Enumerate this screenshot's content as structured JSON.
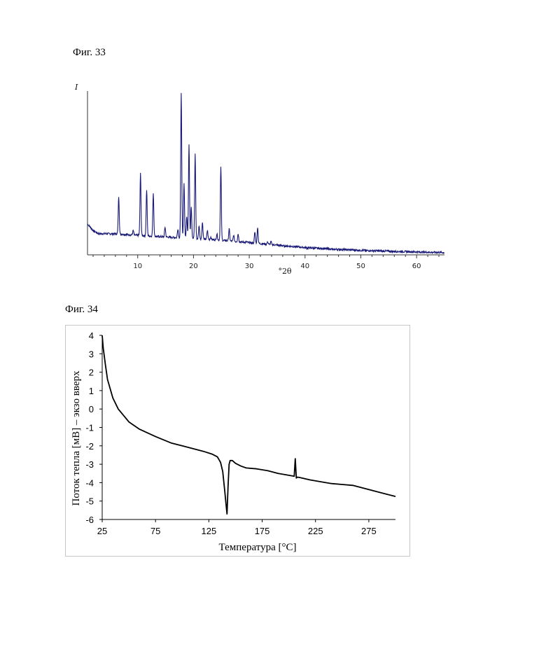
{
  "figures": {
    "fig33_label": "Фиг. 33",
    "fig34_label": "Фиг. 34"
  },
  "chart_data": [
    {
      "type": "line",
      "ylabel": "I",
      "xlabel": "°2θ",
      "xlim": [
        1,
        65
      ],
      "x_ticks": [
        "10",
        "20",
        "30",
        "40",
        "50",
        "60"
      ],
      "x_tick_values": [
        10,
        20,
        30,
        40,
        50,
        60
      ],
      "y_ticks": [],
      "color": "#1a1a78",
      "baseline": [
        [
          1,
          0.19
        ],
        [
          2,
          0.15
        ],
        [
          3,
          0.13
        ],
        [
          6,
          0.13
        ],
        [
          10,
          0.12
        ],
        [
          15,
          0.11
        ],
        [
          20,
          0.1
        ],
        [
          25,
          0.09
        ],
        [
          30,
          0.075
        ],
        [
          35,
          0.06
        ],
        [
          40,
          0.045
        ],
        [
          45,
          0.035
        ],
        [
          50,
          0.028
        ],
        [
          55,
          0.022
        ],
        [
          60,
          0.018
        ],
        [
          65,
          0.014
        ]
      ],
      "peaks": [
        {
          "x": 6.6,
          "y": 0.36
        },
        {
          "x": 9.2,
          "y": 0.15
        },
        {
          "x": 10.5,
          "y": 0.5
        },
        {
          "x": 11.6,
          "y": 0.4
        },
        {
          "x": 12.8,
          "y": 0.38
        },
        {
          "x": 14.9,
          "y": 0.17
        },
        {
          "x": 17.2,
          "y": 0.16
        },
        {
          "x": 17.8,
          "y": 1.0
        },
        {
          "x": 18.3,
          "y": 0.44
        },
        {
          "x": 18.8,
          "y": 0.24
        },
        {
          "x": 19.2,
          "y": 0.68
        },
        {
          "x": 19.6,
          "y": 0.3
        },
        {
          "x": 20.3,
          "y": 0.62
        },
        {
          "x": 21.0,
          "y": 0.18
        },
        {
          "x": 21.6,
          "y": 0.2
        },
        {
          "x": 22.5,
          "y": 0.15
        },
        {
          "x": 23.1,
          "y": 0.11
        },
        {
          "x": 24.2,
          "y": 0.13
        },
        {
          "x": 24.9,
          "y": 0.54
        },
        {
          "x": 26.4,
          "y": 0.16
        },
        {
          "x": 27.2,
          "y": 0.12
        },
        {
          "x": 28.0,
          "y": 0.13
        },
        {
          "x": 29.5,
          "y": 0.08
        },
        {
          "x": 31.0,
          "y": 0.14
        },
        {
          "x": 31.5,
          "y": 0.17
        },
        {
          "x": 33.3,
          "y": 0.08
        },
        {
          "x": 33.9,
          "y": 0.08
        },
        {
          "x": 36.3,
          "y": 0.05
        },
        {
          "x": 38.7,
          "y": 0.05
        },
        {
          "x": 40.4,
          "y": 0.04
        },
        {
          "x": 43.2,
          "y": 0.04
        },
        {
          "x": 45.1,
          "y": 0.03
        }
      ]
    },
    {
      "type": "line",
      "xlabel": "Температура [°С]",
      "ylabel": "Поток тепла [мВ] – экзо вверх",
      "xlim": [
        25,
        300
      ],
      "ylim": [
        -6,
        4
      ],
      "x_ticks": [
        "25",
        "75",
        "125",
        "175",
        "225",
        "275"
      ],
      "x_tick_values": [
        25,
        75,
        125,
        175,
        225,
        275
      ],
      "y_ticks": [
        "4",
        "3",
        "2",
        "1",
        "0",
        "-1",
        "-2",
        "-3",
        "-4",
        "-5",
        "-6"
      ],
      "y_tick_values": [
        4,
        3,
        2,
        1,
        0,
        -1,
        -2,
        -3,
        -4,
        -5,
        -6
      ],
      "color": "#000000",
      "x": [
        25,
        26,
        28,
        30,
        35,
        40,
        50,
        60,
        75,
        90,
        100,
        110,
        120,
        128,
        133,
        136,
        138,
        140,
        141,
        142,
        143,
        144,
        145,
        147,
        150,
        155,
        160,
        170,
        180,
        190,
        200,
        205,
        206,
        207,
        208,
        210,
        220,
        230,
        240,
        250,
        260,
        270,
        280,
        290,
        300
      ],
      "y": [
        4.0,
        3.3,
        2.4,
        1.6,
        0.6,
        0.0,
        -0.7,
        -1.1,
        -1.5,
        -1.85,
        -2.0,
        -2.15,
        -2.3,
        -2.45,
        -2.6,
        -2.9,
        -3.4,
        -4.5,
        -5.1,
        -5.7,
        -4.2,
        -3.0,
        -2.8,
        -2.8,
        -2.95,
        -3.1,
        -3.2,
        -3.25,
        -3.35,
        -3.5,
        -3.6,
        -3.65,
        -2.7,
        -3.75,
        -3.7,
        -3.72,
        -3.85,
        -3.95,
        -4.05,
        -4.1,
        -4.15,
        -4.3,
        -4.45,
        -4.6,
        -4.75
      ]
    }
  ]
}
